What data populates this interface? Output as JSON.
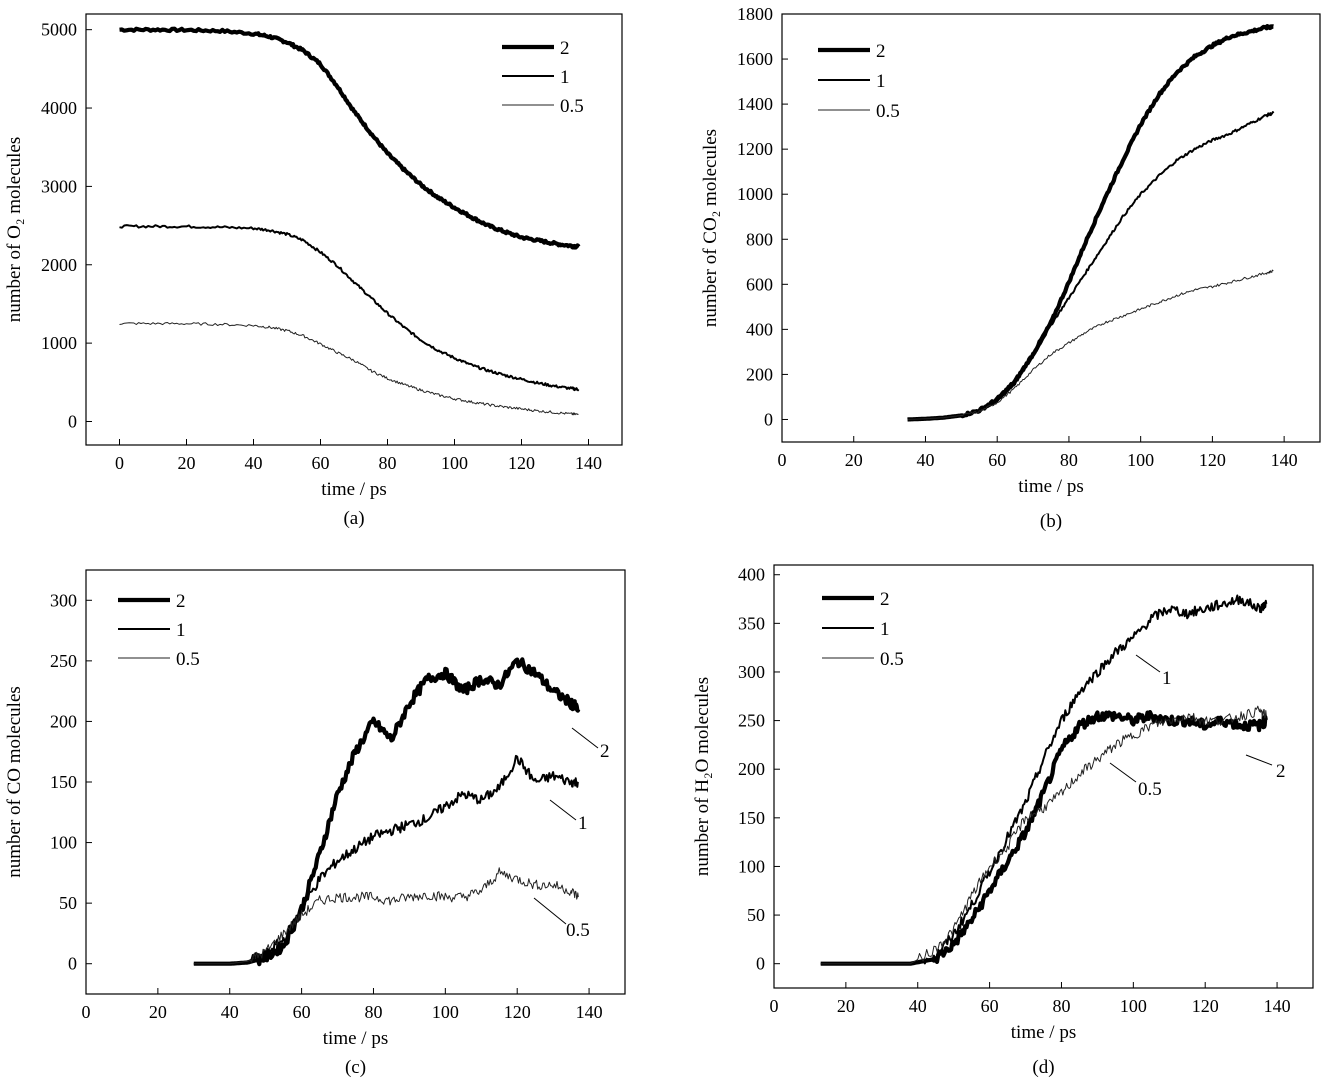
{
  "chart_data": [
    {
      "id": "a",
      "type": "line",
      "panel_label": "(a)",
      "xlabel": "time / ps",
      "ylabel": "number of O₂ molecules",
      "xlim": [
        -10,
        150
      ],
      "ylim": [
        -300,
        5200
      ],
      "xticks": [
        0,
        20,
        40,
        60,
        80,
        100,
        120,
        140
      ],
      "yticks": [
        0,
        1000,
        2000,
        3000,
        4000,
        5000
      ],
      "legend_position": "top-right",
      "legend": [
        "2",
        "1",
        "0.5"
      ],
      "series": [
        {
          "name": "2",
          "x": [
            0,
            10,
            20,
            30,
            40,
            45,
            50,
            55,
            60,
            65,
            70,
            75,
            80,
            85,
            90,
            95,
            100,
            105,
            110,
            115,
            120,
            125,
            130,
            135,
            137
          ],
          "y": [
            5000,
            5000,
            4995,
            4985,
            4950,
            4910,
            4840,
            4730,
            4560,
            4280,
            3960,
            3680,
            3420,
            3210,
            3020,
            2860,
            2730,
            2610,
            2500,
            2420,
            2350,
            2310,
            2270,
            2240,
            2230
          ],
          "style": "thick"
        },
        {
          "name": "1",
          "x": [
            0,
            10,
            20,
            30,
            40,
            45,
            50,
            55,
            60,
            65,
            70,
            75,
            80,
            85,
            90,
            95,
            100,
            105,
            110,
            115,
            120,
            125,
            130,
            135,
            137
          ],
          "y": [
            2490,
            2490,
            2488,
            2480,
            2465,
            2440,
            2390,
            2310,
            2160,
            1990,
            1780,
            1580,
            1380,
            1200,
            1040,
            910,
            810,
            720,
            650,
            590,
            540,
            490,
            450,
            420,
            410
          ],
          "style": "normal"
        },
        {
          "name": "0.5",
          "x": [
            0,
            10,
            20,
            30,
            40,
            45,
            50,
            55,
            60,
            65,
            70,
            75,
            80,
            85,
            90,
            95,
            100,
            105,
            110,
            115,
            120,
            125,
            130,
            135,
            137
          ],
          "y": [
            1250,
            1250,
            1248,
            1240,
            1225,
            1200,
            1160,
            1090,
            990,
            880,
            780,
            650,
            550,
            470,
            400,
            340,
            290,
            250,
            215,
            185,
            160,
            135,
            115,
            95,
            90
          ],
          "style": "thin"
        }
      ]
    },
    {
      "id": "b",
      "type": "line",
      "panel_label": "(b)",
      "xlabel": "time / ps",
      "ylabel": "number of CO₂ molecules",
      "xlim": [
        0,
        150
      ],
      "ylim": [
        -100,
        1800
      ],
      "xticks": [
        0,
        20,
        40,
        60,
        80,
        100,
        120,
        140
      ],
      "yticks": [
        0,
        200,
        400,
        600,
        800,
        1000,
        1200,
        1400,
        1600,
        1800
      ],
      "legend_position": "top-left",
      "legend": [
        "2",
        "1",
        "0.5"
      ],
      "series": [
        {
          "name": "2",
          "x": [
            35,
            40,
            45,
            50,
            55,
            60,
            65,
            70,
            75,
            80,
            85,
            90,
            95,
            100,
            105,
            110,
            115,
            120,
            125,
            130,
            135,
            137
          ],
          "y": [
            0,
            3,
            8,
            18,
            40,
            90,
            170,
            290,
            430,
            610,
            800,
            980,
            1150,
            1310,
            1440,
            1540,
            1610,
            1660,
            1700,
            1720,
            1740,
            1745
          ],
          "style": "thick"
        },
        {
          "name": "1",
          "x": [
            35,
            40,
            45,
            50,
            55,
            60,
            65,
            70,
            75,
            80,
            85,
            90,
            95,
            100,
            105,
            110,
            115,
            120,
            125,
            130,
            135,
            137
          ],
          "y": [
            0,
            3,
            8,
            18,
            38,
            80,
            160,
            280,
            420,
            540,
            660,
            780,
            900,
            1000,
            1080,
            1150,
            1200,
            1240,
            1270,
            1310,
            1350,
            1360
          ],
          "style": "normal"
        },
        {
          "name": "0.5",
          "x": [
            35,
            40,
            45,
            50,
            55,
            60,
            65,
            70,
            75,
            80,
            85,
            90,
            95,
            100,
            105,
            110,
            115,
            120,
            125,
            130,
            135,
            137
          ],
          "y": [
            0,
            3,
            8,
            18,
            35,
            75,
            140,
            220,
            290,
            340,
            390,
            430,
            460,
            490,
            520,
            550,
            575,
            590,
            610,
            630,
            650,
            660
          ],
          "style": "thin"
        }
      ]
    },
    {
      "id": "c",
      "type": "line",
      "panel_label": "(c)",
      "xlabel": "time / ps",
      "ylabel": "number of CO molecules",
      "xlim": [
        0,
        150
      ],
      "ylim": [
        -25,
        325
      ],
      "xticks": [
        0,
        20,
        40,
        60,
        80,
        100,
        120,
        140
      ],
      "yticks": [
        0,
        50,
        100,
        150,
        200,
        250,
        300
      ],
      "legend_position": "top-left",
      "legend": [
        "2",
        "1",
        "0.5"
      ],
      "annotations": [
        "2",
        "1",
        "0.5"
      ],
      "series": [
        {
          "name": "2",
          "x": [
            30,
            40,
            45,
            50,
            55,
            60,
            65,
            70,
            75,
            80,
            85,
            90,
            95,
            100,
            105,
            110,
            115,
            120,
            125,
            130,
            135,
            137
          ],
          "y": [
            0,
            0,
            1,
            5,
            15,
            45,
            90,
            140,
            175,
            200,
            185,
            215,
            235,
            240,
            225,
            235,
            230,
            250,
            240,
            225,
            215,
            210
          ],
          "style": "thick"
        },
        {
          "name": "1",
          "x": [
            30,
            40,
            45,
            50,
            55,
            60,
            65,
            70,
            75,
            80,
            85,
            90,
            95,
            100,
            105,
            110,
            115,
            120,
            125,
            130,
            135,
            137
          ],
          "y": [
            0,
            0,
            2,
            8,
            20,
            45,
            70,
            85,
            95,
            105,
            110,
            115,
            120,
            130,
            140,
            135,
            145,
            170,
            150,
            155,
            150,
            150
          ],
          "style": "normal"
        },
        {
          "name": "0.5",
          "x": [
            30,
            40,
            45,
            50,
            55,
            60,
            65,
            70,
            75,
            80,
            85,
            90,
            95,
            100,
            105,
            110,
            115,
            120,
            125,
            130,
            135,
            137
          ],
          "y": [
            0,
            0,
            2,
            10,
            25,
            40,
            52,
            55,
            55,
            55,
            52,
            55,
            57,
            55,
            55,
            60,
            75,
            70,
            65,
            65,
            60,
            55
          ],
          "style": "thin"
        }
      ]
    },
    {
      "id": "d",
      "type": "line",
      "panel_label": "(d)",
      "xlabel": "time / ps",
      "ylabel": "number of H₂O molecules",
      "xlim": [
        0,
        150
      ],
      "ylim": [
        -25,
        410
      ],
      "xticks": [
        0,
        20,
        40,
        60,
        80,
        100,
        120,
        140
      ],
      "yticks": [
        0,
        50,
        100,
        150,
        200,
        250,
        300,
        350,
        400
      ],
      "legend_position": "top-left",
      "legend": [
        "2",
        "1",
        "0.5"
      ],
      "annotations": [
        "1",
        "2",
        "0.5"
      ],
      "series": [
        {
          "name": "2",
          "x": [
            13,
            20,
            30,
            38,
            45,
            50,
            55,
            60,
            65,
            70,
            75,
            80,
            85,
            90,
            95,
            100,
            105,
            110,
            115,
            120,
            125,
            130,
            135,
            137
          ],
          "y": [
            0,
            0,
            0,
            0,
            5,
            20,
            45,
            75,
            105,
            135,
            175,
            220,
            245,
            255,
            255,
            250,
            255,
            250,
            250,
            245,
            250,
            245,
            245,
            250
          ],
          "style": "thick"
        },
        {
          "name": "1",
          "x": [
            13,
            20,
            30,
            38,
            45,
            50,
            55,
            60,
            65,
            70,
            75,
            80,
            85,
            90,
            95,
            100,
            105,
            110,
            115,
            120,
            125,
            130,
            135,
            137
          ],
          "y": [
            0,
            0,
            0,
            0,
            8,
            30,
            60,
            95,
            130,
            165,
            210,
            250,
            280,
            300,
            320,
            335,
            355,
            365,
            360,
            365,
            370,
            375,
            365,
            370
          ],
          "style": "normal"
        },
        {
          "name": "0.5",
          "x": [
            13,
            20,
            30,
            38,
            45,
            50,
            55,
            60,
            65,
            70,
            75,
            80,
            85,
            90,
            95,
            100,
            105,
            110,
            115,
            120,
            125,
            130,
            135,
            137
          ],
          "y": [
            0,
            0,
            0,
            0,
            15,
            35,
            70,
            100,
            120,
            150,
            160,
            175,
            195,
            210,
            225,
            235,
            245,
            250,
            255,
            250,
            250,
            255,
            260,
            255
          ],
          "style": "thin"
        }
      ]
    }
  ]
}
